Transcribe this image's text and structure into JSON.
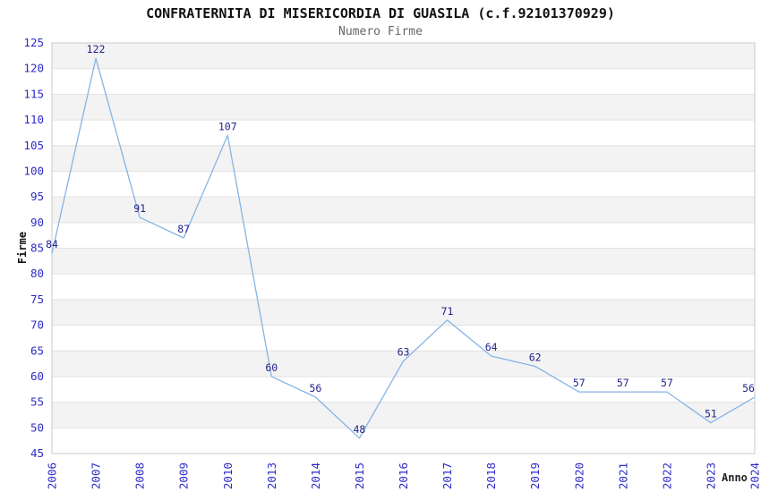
{
  "chart_data": {
    "type": "line",
    "title": "CONFRATERNITA DI MISERICORDIA DI GUASILA (c.f.92101370929)",
    "subtitle": "Numero Firme",
    "xlabel": "Anno",
    "ylabel": "Firme",
    "categories": [
      "2006",
      "2007",
      "2008",
      "2009",
      "2010",
      "2013",
      "2014",
      "2015",
      "2016",
      "2017",
      "2018",
      "2019",
      "2020",
      "2021",
      "2022",
      "2023",
      "2024"
    ],
    "values": [
      84,
      122,
      91,
      87,
      107,
      60,
      56,
      48,
      63,
      71,
      64,
      62,
      57,
      57,
      57,
      51,
      56
    ],
    "ylim": [
      45,
      125
    ],
    "ytick_step": 5,
    "grid": true,
    "banded_background": true,
    "legend": "none",
    "point_labels_shown": true,
    "colors": {
      "line": "#85b4e6",
      "point_label": "#22228a",
      "tick_label": "#2b2bc8",
      "band": "#f3f3f3",
      "gridline": "#e2e2e2",
      "border": "#c9c9c9",
      "title": "#111111",
      "subtitle": "#666666"
    }
  }
}
